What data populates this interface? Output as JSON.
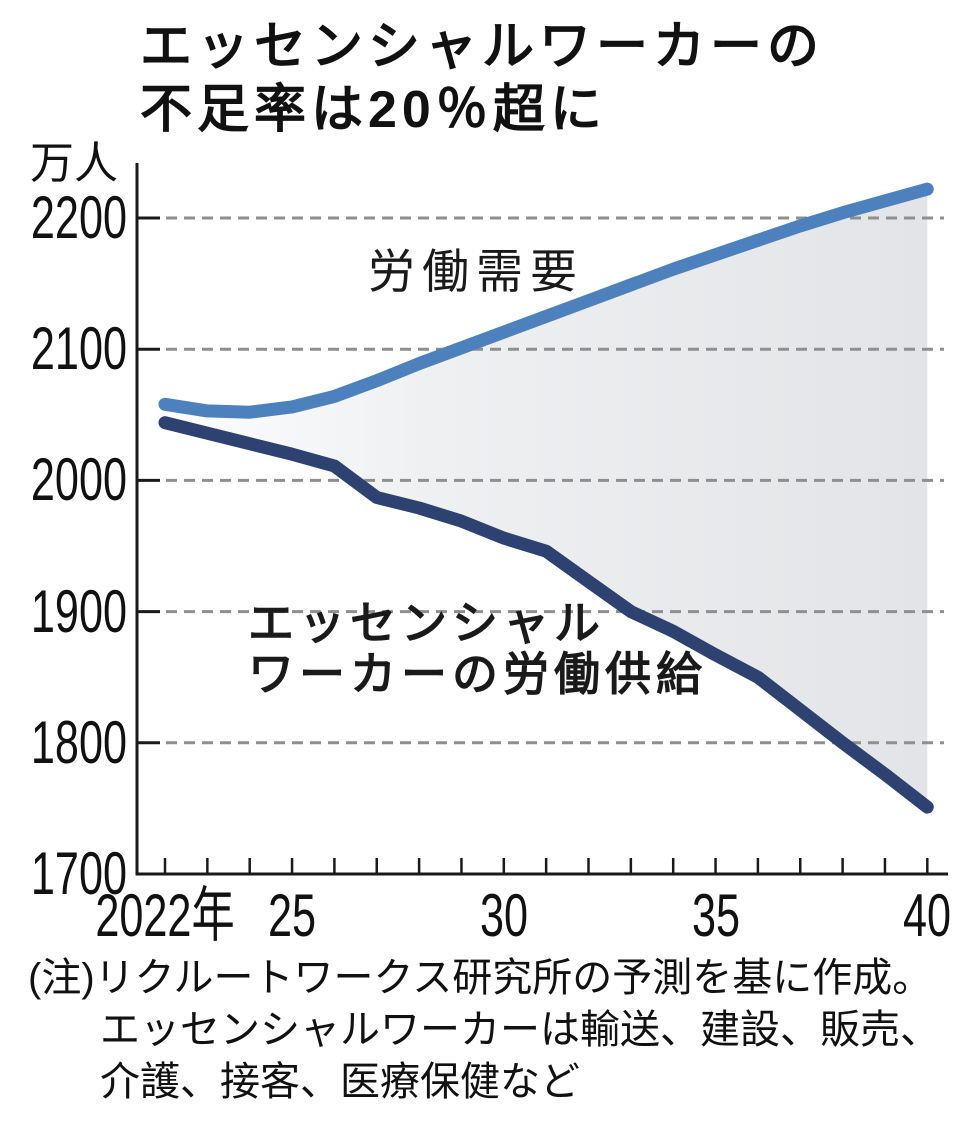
{
  "title": {
    "lines": [
      "エッセンシャルワーカーの",
      "不足率は20％超に"
    ]
  },
  "y_axis": {
    "unit": "万人",
    "tick_values": [
      2200,
      2100,
      2000,
      1900,
      1800,
      1700
    ]
  },
  "x_axis": {
    "ticks": [
      {
        "label": "2022年",
        "year": 2022
      },
      {
        "label": "25",
        "year": 2025
      },
      {
        "label": "30",
        "year": 2030
      },
      {
        "label": "35",
        "year": 2035
      },
      {
        "label": "40",
        "year": 2040
      }
    ]
  },
  "series_labels": {
    "demand": "労働需要",
    "supply": [
      "エッセンシャル",
      "ワーカーの労働供給"
    ]
  },
  "note": {
    "lines": [
      "(注)リクルートワークス研究所の予測を基に作成。",
      "エッセンシャルワーカーは輸送、建設、販売、",
      "介護、接客、医療保健など"
    ]
  },
  "colors": {
    "demand_line": "#4d81bd",
    "supply_line": "#2d4270",
    "area_left": "#fdfdfe",
    "area_mid": "#eef0f2",
    "area_right": "#e2e4e7",
    "gridline": "#8f8f8f",
    "axis": "#1a1a1a",
    "text": "#111111"
  },
  "chart_data": {
    "type": "line",
    "title": "エッセンシャルワーカーの不足率は20％超に",
    "ylabel": "万人",
    "ylim": [
      1700,
      2240
    ],
    "xlim": [
      2022,
      2040
    ],
    "grid": "horizontal-dashed",
    "legend_position": "inline-annotations",
    "x": [
      2022,
      2023,
      2024,
      2025,
      2026,
      2027,
      2028,
      2029,
      2030,
      2031,
      2032,
      2033,
      2034,
      2035,
      2036,
      2037,
      2038,
      2039,
      2040
    ],
    "series": [
      {
        "name": "労働需要",
        "color": "#4d81bd",
        "values": [
          2058,
          2053,
          2052,
          2056,
          2064,
          2076,
          2089,
          2101,
          2113,
          2125,
          2137,
          2149,
          2161,
          2172,
          2183,
          2194,
          2204,
          2213,
          2222
        ]
      },
      {
        "name": "エッセンシャルワーカーの労働供給",
        "color": "#2d4270",
        "values": [
          2044,
          2036,
          2028,
          2020,
          2011,
          1987,
          1979,
          1969,
          1956,
          1946,
          1923,
          1900,
          1885,
          1867,
          1850,
          1825,
          1800,
          1776,
          1751
        ]
      }
    ]
  }
}
